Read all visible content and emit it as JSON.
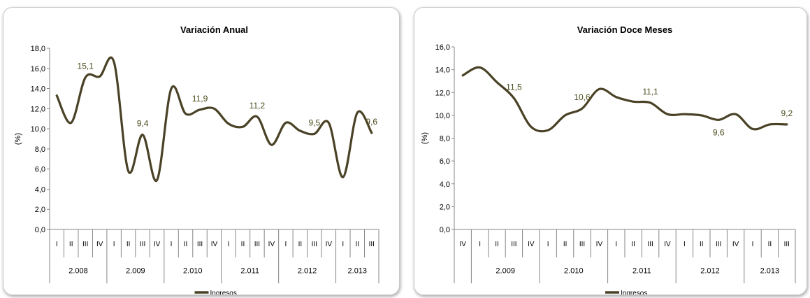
{
  "accent_color": "#4a4226",
  "label_color": "#4a4a1c",
  "chart_data": [
    {
      "type": "line",
      "title": "Variación Anual",
      "ylabel": "(%)",
      "ylim": [
        0,
        18
      ],
      "yticks": [
        "0,0",
        "2,0",
        "4,0",
        "6,0",
        "8,0",
        "10,0",
        "12,0",
        "14,0",
        "16,0",
        "18,0"
      ],
      "x": [
        "I",
        "II",
        "III",
        "IV",
        "I",
        "II",
        "III",
        "IV",
        "I",
        "II",
        "III",
        "IV",
        "I",
        "II",
        "III",
        "IV",
        "I",
        "II",
        "III",
        "IV",
        "I",
        "II",
        "III"
      ],
      "years": [
        {
          "label": "2.008",
          "span": 4
        },
        {
          "label": "2.009",
          "span": 4
        },
        {
          "label": "2.010",
          "span": 4
        },
        {
          "label": "2.011",
          "span": 4
        },
        {
          "label": "2.012",
          "span": 4
        },
        {
          "label": "2.013",
          "span": 3
        }
      ],
      "series": [
        {
          "name": "Ingresos",
          "values": [
            13.3,
            10.6,
            15.1,
            15.2,
            16.6,
            5.8,
            9.4,
            4.9,
            14.0,
            11.5,
            11.9,
            12.0,
            10.5,
            10.2,
            11.2,
            8.4,
            10.6,
            9.8,
            9.5,
            10.6,
            5.2,
            11.6,
            9.6
          ]
        }
      ],
      "data_labels": [
        {
          "index": 2,
          "text": "15,1"
        },
        {
          "index": 6,
          "text": "9,4"
        },
        {
          "index": 10,
          "text": "11,9"
        },
        {
          "index": 14,
          "text": "11,2"
        },
        {
          "index": 18,
          "text": "9,5"
        },
        {
          "index": 22,
          "text": "9,6"
        }
      ],
      "legend": "Ingresos",
      "legend_position": "bottom",
      "grid": false
    },
    {
      "type": "line",
      "title": "Variación Doce Meses",
      "ylabel": "(%)",
      "ylim": [
        0,
        16
      ],
      "yticks": [
        "0,0",
        "2,0",
        "4,0",
        "6,0",
        "8,0",
        "10,0",
        "12,0",
        "14,0",
        "16,0"
      ],
      "x": [
        "IV",
        "I",
        "II",
        "III",
        "IV",
        "I",
        "II",
        "III",
        "IV",
        "I",
        "II",
        "III",
        "IV",
        "I",
        "II",
        "III",
        "IV",
        "I",
        "II",
        "III"
      ],
      "years": [
        {
          "label": "",
          "span": 1
        },
        {
          "label": "2.009",
          "span": 4
        },
        {
          "label": "2.010",
          "span": 4
        },
        {
          "label": "2.011",
          "span": 4
        },
        {
          "label": "2.012",
          "span": 4
        },
        {
          "label": "2.013",
          "span": 3
        }
      ],
      "series": [
        {
          "name": "Ingresos",
          "values": [
            13.5,
            14.2,
            12.9,
            11.5,
            9.0,
            8.7,
            10.0,
            10.6,
            12.3,
            11.6,
            11.2,
            11.1,
            10.1,
            10.1,
            10.0,
            9.6,
            10.1,
            8.8,
            9.2,
            9.2
          ]
        }
      ],
      "data_labels": [
        {
          "index": 3,
          "text": "11,5"
        },
        {
          "index": 7,
          "text": "10,6"
        },
        {
          "index": 11,
          "text": "11,1"
        },
        {
          "index": 15,
          "text": "9,6",
          "below": true
        },
        {
          "index": 19,
          "text": "9,2"
        }
      ],
      "legend": "Ingresos",
      "legend_position": "bottom",
      "grid": false
    }
  ]
}
